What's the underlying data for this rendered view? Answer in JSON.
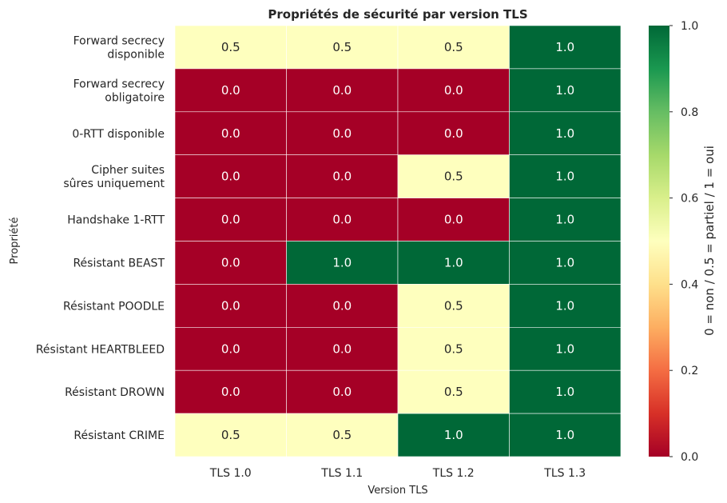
{
  "chart_data": {
    "type": "heatmap",
    "title": "Propriétés de sécurité par version TLS",
    "xlabel": "Version TLS",
    "ylabel": "Propriété",
    "columns": [
      "TLS 1.0",
      "TLS 1.1",
      "TLS 1.2",
      "TLS 1.3"
    ],
    "rows": [
      [
        "Forward secrecy",
        "disponible"
      ],
      [
        "Forward secrecy",
        "obligatoire"
      ],
      [
        "0-RTT disponible"
      ],
      [
        "Cipher suites",
        "sûres uniquement"
      ],
      [
        "Handshake 1-RTT"
      ],
      [
        "Résistant BEAST"
      ],
      [
        "Résistant POODLE"
      ],
      [
        "Résistant HEARTBLEED"
      ],
      [
        "Résistant DROWN"
      ],
      [
        "Résistant CRIME"
      ]
    ],
    "values": [
      [
        0.5,
        0.5,
        0.5,
        1.0
      ],
      [
        0.0,
        0.0,
        0.0,
        1.0
      ],
      [
        0.0,
        0.0,
        0.0,
        1.0
      ],
      [
        0.0,
        0.0,
        0.5,
        1.0
      ],
      [
        0.0,
        0.0,
        0.0,
        1.0
      ],
      [
        0.0,
        1.0,
        1.0,
        1.0
      ],
      [
        0.0,
        0.0,
        0.5,
        1.0
      ],
      [
        0.0,
        0.0,
        0.5,
        1.0
      ],
      [
        0.0,
        0.0,
        0.5,
        1.0
      ],
      [
        0.5,
        0.5,
        1.0,
        1.0
      ]
    ],
    "value_format": "0.0",
    "colormap": "RdYlGn",
    "colors": {
      "low": "#a50026",
      "mid": "#feffbe",
      "high": "#006837"
    },
    "colorbar": {
      "label": "0 = non  /  0.5 = partiel  /  1 = oui",
      "range": [
        0.0,
        1.0
      ],
      "ticks": [
        "0.0",
        "0.2",
        "0.4",
        "0.6",
        "0.8",
        "1.0"
      ]
    }
  }
}
